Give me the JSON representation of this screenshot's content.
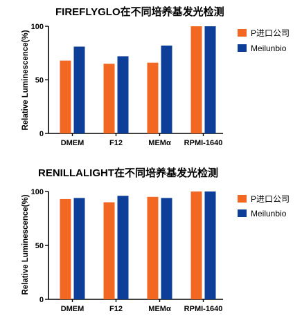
{
  "colors": {
    "series_a": "#f26722",
    "series_b": "#0e3f98",
    "axis": "#000000"
  },
  "chart_data": [
    {
      "type": "bar",
      "title": "FIREFLYGLO在不同培养基发光检测",
      "xlabel": "",
      "ylabel": "Relative Luminescence(%)",
      "ylim": [
        0,
        100
      ],
      "yticks": [
        "0",
        "50",
        "100"
      ],
      "categories": [
        "DMEM",
        "F12",
        "MEMα",
        "RPMI-1640"
      ],
      "series": [
        {
          "name": "P进口公司",
          "values": [
            68,
            65,
            66,
            100
          ]
        },
        {
          "name": "Meilunbio",
          "values": [
            81,
            72,
            82,
            100
          ]
        }
      ],
      "legend": "right",
      "grid": false
    },
    {
      "type": "bar",
      "title": "RENILLALIGHT在不同培养基发光检测",
      "xlabel": "",
      "ylabel": "Relative Luminescence(%)",
      "ylim": [
        0,
        100
      ],
      "yticks": [
        "0",
        "50",
        "100"
      ],
      "categories": [
        "DMEM",
        "F12",
        "MEMα",
        "RPMI-1640"
      ],
      "series": [
        {
          "name": "P进口公司",
          "values": [
            93,
            90,
            95,
            100
          ]
        },
        {
          "name": "Meilunbio",
          "values": [
            94,
            96,
            94,
            100
          ]
        }
      ],
      "legend": "right",
      "grid": false
    }
  ]
}
